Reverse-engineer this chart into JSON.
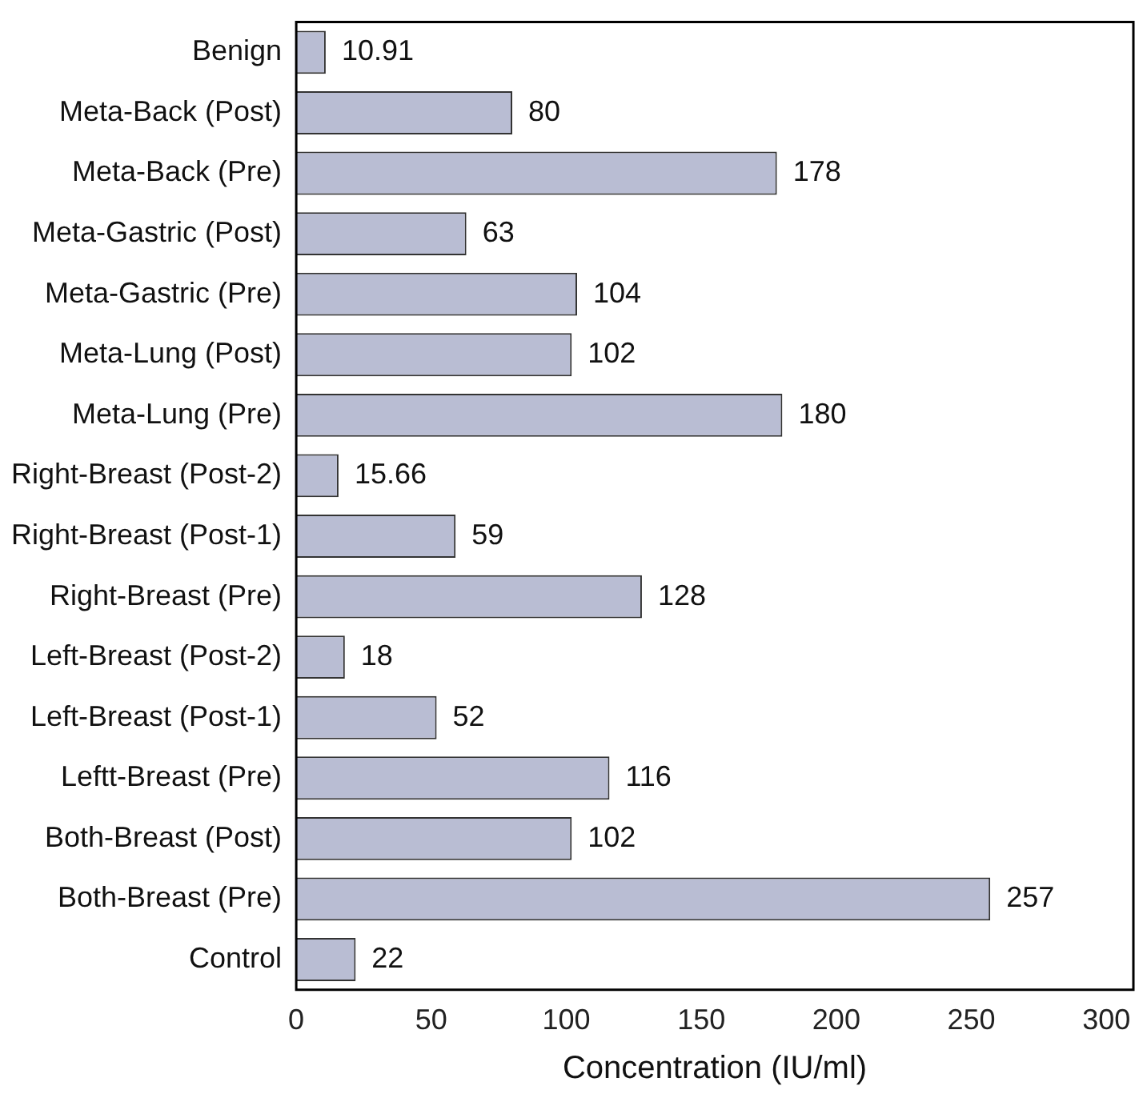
{
  "chart_data": {
    "type": "bar",
    "orientation": "horizontal",
    "xlabel": "Concentration (IU/ml)",
    "categories": [
      "Benign",
      "Meta-Back (Post)",
      "Meta-Back (Pre)",
      "Meta-Gastric (Post)",
      "Meta-Gastric (Pre)",
      "Meta-Lung (Post)",
      "Meta-Lung (Pre)",
      "Right-Breast (Post-2)",
      "Right-Breast (Post-1)",
      "Right-Breast (Pre)",
      "Left-Breast (Post-2)",
      "Left-Breast (Post-1)",
      "Leftt-Breast (Pre)",
      "Both-Breast (Post)",
      "Both-Breast (Pre)",
      "Control"
    ],
    "values": [
      10.91,
      80,
      178,
      63,
      104,
      102,
      180,
      15.66,
      59,
      128,
      18,
      52,
      116,
      102,
      257,
      22
    ],
    "color": "#b9bdd3",
    "xlim": [
      0,
      310
    ],
    "xticks": [
      0,
      50,
      100,
      150,
      200,
      250,
      300
    ],
    "grid": false,
    "legend": false,
    "data_labels": true
  }
}
